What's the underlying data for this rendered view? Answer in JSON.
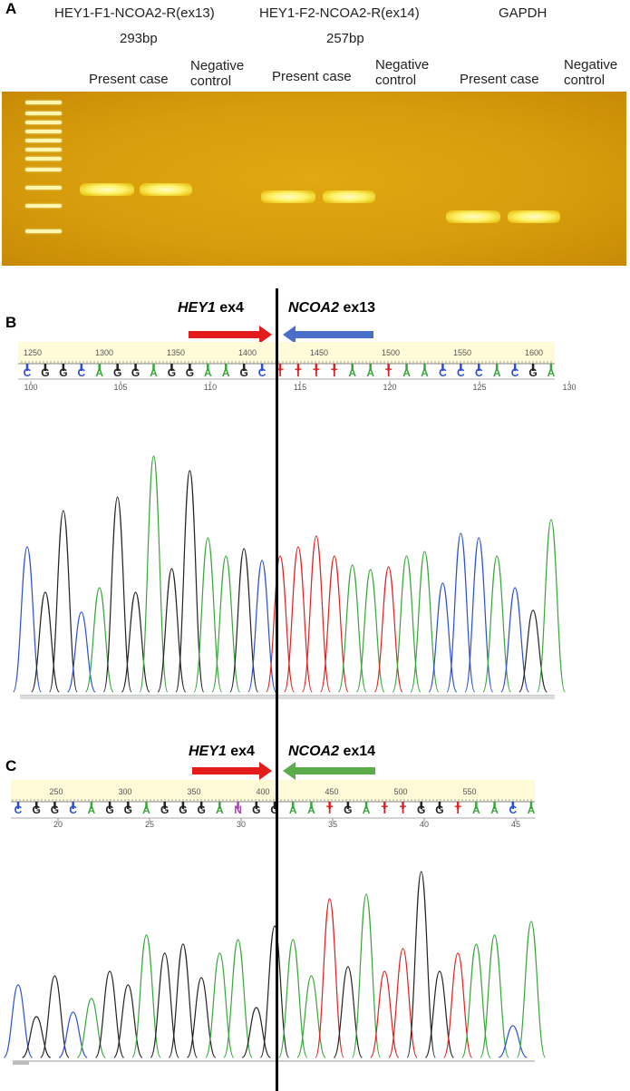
{
  "panelA": {
    "letter": "A",
    "primer1": "HEY1-F1-NCOA2-R(ex13)",
    "size1": "293bp",
    "primer2": "HEY1-F2-NCOA2-R(ex14)",
    "size2": "257bp",
    "primer3": "GAPDH",
    "lanes": [
      {
        "present": "Present case",
        "neg1": "Negative",
        "neg2": "control"
      },
      {
        "present": "Present case",
        "neg1": "Negative",
        "neg2": "control"
      },
      {
        "present": "Present case",
        "neg1": "Negative",
        "neg2": "control"
      }
    ]
  },
  "panelB": {
    "letter": "B",
    "left_gene": "HEY1",
    "left_exon": " ex4",
    "right_gene": "NCOA2",
    "right_exon": " ex13",
    "top_ticks": [
      "1250",
      "1300",
      "1350",
      "1400",
      "1450",
      "1500",
      "1550",
      "1600"
    ],
    "bottom_ticks": [
      "100",
      "105",
      "110",
      "115",
      "120",
      "125",
      "130"
    ],
    "bases": [
      "C",
      "G",
      "G",
      "C",
      "A",
      "G",
      "G",
      "A",
      "G",
      "G",
      "A",
      "A",
      "G",
      "C",
      "T",
      "T",
      "T",
      "T",
      "A",
      "A",
      "T",
      "A",
      "A",
      "C",
      "C",
      "C",
      "A",
      "C",
      "G",
      "A"
    ],
    "arrow_left_color": "#e31b1b",
    "arrow_right_color": "#4a6fc8"
  },
  "panelC": {
    "letter": "C",
    "left_gene": "HEY1",
    "left_exon": " ex4",
    "right_gene": "NCOA2",
    "right_exon": " ex14",
    "top_ticks": [
      "250",
      "300",
      "350",
      "400",
      "450",
      "500",
      "550"
    ],
    "bottom_ticks": [
      "20",
      "25",
      "30",
      "35",
      "40",
      "45"
    ],
    "bases": [
      "C",
      "G",
      "G",
      "C",
      "A",
      "G",
      "G",
      "A",
      "G",
      "G",
      "G",
      "A",
      "N",
      "G",
      "G",
      "A",
      "A",
      "T",
      "G",
      "A",
      "T",
      "T",
      "G",
      "G",
      "T",
      "A",
      "A",
      "C",
      "A"
    ],
    "arrow_left_color": "#e31b1b",
    "arrow_right_color": "#5aad4a"
  },
  "base_colors": {
    "A": "#3aa63a",
    "C": "#2a4fd6",
    "G": "#222222",
    "T": "#e02020",
    "N": "#b23bbf"
  }
}
